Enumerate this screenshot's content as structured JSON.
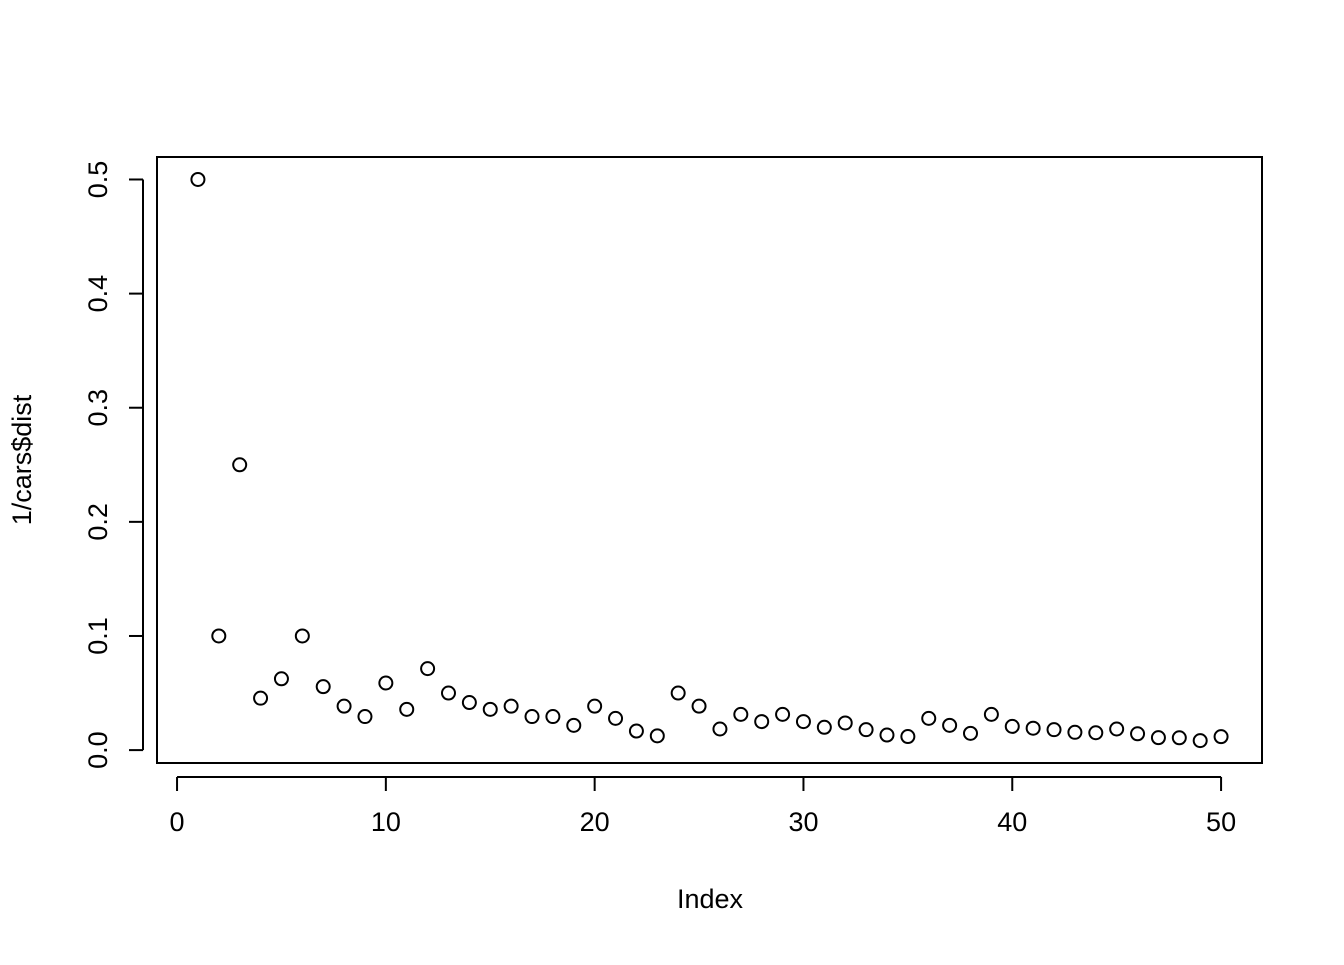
{
  "chart_data": {
    "type": "scatter",
    "x_label": "Index",
    "y_label": "1/cars$dist",
    "x": [
      1,
      2,
      3,
      4,
      5,
      6,
      7,
      8,
      9,
      10,
      11,
      12,
      13,
      14,
      15,
      16,
      17,
      18,
      19,
      20,
      21,
      22,
      23,
      24,
      25,
      26,
      27,
      28,
      29,
      30,
      31,
      32,
      33,
      34,
      35,
      36,
      37,
      38,
      39,
      40,
      41,
      42,
      43,
      44,
      45,
      46,
      47,
      48,
      49,
      50
    ],
    "values": [
      0.5,
      0.1,
      0.25,
      0.0455,
      0.0625,
      0.1,
      0.0556,
      0.0385,
      0.0294,
      0.0588,
      0.0357,
      0.0714,
      0.05,
      0.0417,
      0.0357,
      0.0385,
      0.0294,
      0.0294,
      0.0217,
      0.0385,
      0.0278,
      0.0167,
      0.0125,
      0.05,
      0.0385,
      0.0185,
      0.0313,
      0.025,
      0.0313,
      0.025,
      0.02,
      0.0238,
      0.0179,
      0.0132,
      0.0119,
      0.0278,
      0.0217,
      0.0147,
      0.0313,
      0.0208,
      0.0192,
      0.0179,
      0.0156,
      0.0152,
      0.0185,
      0.0143,
      0.0109,
      0.0108,
      0.0083,
      0.0118
    ],
    "color": "#000000",
    "xlim": [
      -0.96,
      51.96
    ],
    "ylim": [
      -0.0113,
      0.5197
    ],
    "xticks": [
      0,
      10,
      20,
      30,
      40,
      50
    ],
    "yticks": [
      {
        "value": 0,
        "label": "0.0"
      },
      0.1,
      0.2,
      0.3,
      0.4,
      0.5
    ],
    "grid": false
  }
}
